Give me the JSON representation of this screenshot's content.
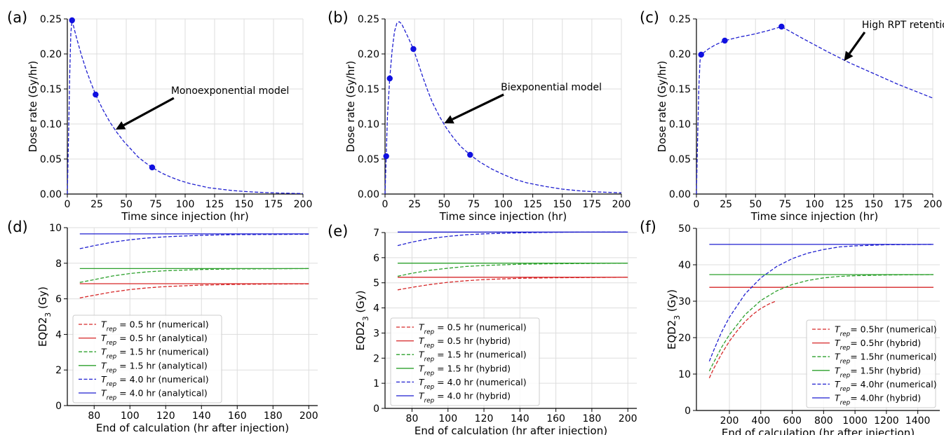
{
  "figure": {
    "panel_labels": [
      "(a)",
      "(b)",
      "(c)",
      "(d)",
      "(e)",
      "(f)"
    ]
  },
  "colors": {
    "red": "#d62728",
    "green": "#2ca02c",
    "blue": "#1f1fd0",
    "marker": "#1010e0",
    "grid": "#dddddd"
  },
  "chart_data": [
    {
      "panel": "(a)",
      "type": "line",
      "xlabel": "Time since injection (hr)",
      "ylabel": "Dose rate (Gy/hr)",
      "xlim": [
        0,
        200
      ],
      "ylim": [
        0,
        0.25
      ],
      "xticks": [
        0,
        25,
        50,
        75,
        100,
        125,
        150,
        175,
        200
      ],
      "yticks": [
        0.0,
        0.05,
        0.1,
        0.15,
        0.2,
        0.25
      ],
      "xtick_labels": [
        "0",
        "25",
        "50",
        "75",
        "100",
        "125",
        "150",
        "175",
        "200"
      ],
      "ytick_labels": [
        "0.00",
        "0.05",
        "0.10",
        "0.15",
        "0.20",
        "0.25"
      ],
      "grid": true,
      "series": [
        {
          "style": "dashed",
          "color": "blue",
          "x": [
            0,
            1,
            2,
            3,
            4,
            8,
            12,
            16,
            20,
            24,
            30,
            36,
            42,
            48,
            54,
            60,
            66,
            72,
            80,
            88,
            96,
            104,
            112,
            120,
            130,
            140,
            150,
            160,
            170,
            180,
            190,
            200
          ],
          "y": [
            0.0,
            0.08,
            0.17,
            0.23,
            0.248,
            0.222,
            0.198,
            0.177,
            0.159,
            0.142,
            0.121,
            0.103,
            0.088,
            0.075,
            0.064,
            0.053,
            0.045,
            0.038,
            0.03,
            0.024,
            0.019,
            0.015,
            0.012,
            0.009,
            0.007,
            0.005,
            0.0037,
            0.0027,
            0.002,
            0.0014,
            0.001,
            0.0007
          ]
        }
      ],
      "markers": {
        "x": [
          4,
          24,
          72
        ],
        "y": [
          0.248,
          0.142,
          0.038
        ]
      },
      "annotation": {
        "text": "Monoexponential model",
        "xy": [
          41,
          0.092
        ],
        "xytext": [
          88,
          0.143
        ]
      }
    },
    {
      "panel": "(b)",
      "type": "line",
      "xlabel": "Time since injection (hr)",
      "ylabel": "Dose rate (Gy/hr)",
      "xlim": [
        0,
        200
      ],
      "ylim": [
        0,
        0.25
      ],
      "xticks": [
        0,
        25,
        50,
        75,
        100,
        125,
        150,
        175,
        200
      ],
      "yticks": [
        0.0,
        0.05,
        0.1,
        0.15,
        0.2,
        0.25
      ],
      "xtick_labels": [
        "0",
        "25",
        "50",
        "75",
        "100",
        "125",
        "150",
        "175",
        "200"
      ],
      "ytick_labels": [
        "0.00",
        "0.05",
        "0.10",
        "0.15",
        "0.20",
        "0.25"
      ],
      "grid": true,
      "series": [
        {
          "style": "dashed",
          "color": "blue",
          "x": [
            0,
            1,
            2,
            4,
            6,
            8,
            10,
            12,
            14,
            16,
            20,
            24,
            28,
            32,
            36,
            40,
            46,
            52,
            58,
            64,
            72,
            80,
            90,
            100,
            110,
            120,
            135,
            150,
            165,
            180,
            200
          ],
          "y": [
            0.0,
            0.054,
            0.11,
            0.165,
            0.205,
            0.232,
            0.244,
            0.246,
            0.243,
            0.236,
            0.222,
            0.207,
            0.187,
            0.167,
            0.148,
            0.131,
            0.111,
            0.094,
            0.08,
            0.068,
            0.056,
            0.046,
            0.036,
            0.028,
            0.021,
            0.016,
            0.011,
            0.007,
            0.0045,
            0.003,
            0.0017
          ]
        }
      ],
      "markers": {
        "x": [
          1,
          4,
          24,
          72
        ],
        "y": [
          0.054,
          0.165,
          0.207,
          0.056
        ]
      },
      "annotation": {
        "text": "Biexponential model",
        "xy": [
          50,
          0.101
        ],
        "xytext": [
          98,
          0.148
        ]
      }
    },
    {
      "panel": "(c)",
      "type": "line",
      "xlabel": "Time since injection (hr)",
      "ylabel": "Dose rate (Gy/hr)",
      "xlim": [
        0,
        200
      ],
      "ylim": [
        0,
        0.25
      ],
      "xticks": [
        0,
        25,
        50,
        75,
        100,
        125,
        150,
        175,
        200
      ],
      "yticks": [
        0.0,
        0.05,
        0.1,
        0.15,
        0.2,
        0.25
      ],
      "xtick_labels": [
        "0",
        "25",
        "50",
        "75",
        "100",
        "125",
        "150",
        "175",
        "200"
      ],
      "ytick_labels": [
        "0.00",
        "0.05",
        "0.10",
        "0.15",
        "0.20",
        "0.25"
      ],
      "grid": true,
      "series": [
        {
          "style": "dashed",
          "color": "blue",
          "x": [
            0,
            1,
            2,
            3,
            4,
            10,
            16,
            24,
            36,
            48,
            60,
            72,
            90,
            110,
            130,
            150,
            170,
            185,
            200
          ],
          "y": [
            0.0,
            0.08,
            0.15,
            0.19,
            0.199,
            0.207,
            0.213,
            0.219,
            0.224,
            0.228,
            0.233,
            0.239,
            0.222,
            0.204,
            0.187,
            0.172,
            0.157,
            0.147,
            0.137
          ]
        }
      ],
      "markers": {
        "x": [
          4,
          24,
          72
        ],
        "y": [
          0.199,
          0.219,
          0.239
        ]
      },
      "annotation": {
        "text": "High RPT retention model",
        "xy": [
          125,
          0.19
        ],
        "xytext": [
          140,
          0.237
        ]
      }
    },
    {
      "panel": "(d)",
      "type": "line",
      "xlabel": "End of calculation (hr after injection)",
      "ylabel": "EQD2",
      "ylabel_sub": "3",
      "ylabel_unit": " (Gy)",
      "xlim": [
        65,
        205
      ],
      "ylim": [
        0,
        10
      ],
      "xticks": [
        80,
        100,
        120,
        140,
        160,
        180,
        200
      ],
      "yticks": [
        0,
        2,
        4,
        6,
        8,
        10
      ],
      "xtick_labels": [
        "80",
        "100",
        "120",
        "140",
        "160",
        "180",
        "200"
      ],
      "ytick_labels": [
        "0",
        "2",
        "4",
        "6",
        "8",
        "10"
      ],
      "grid": true,
      "series": [
        {
          "style": "dashed",
          "color": "red",
          "x": [
            72,
            80,
            90,
            100,
            110,
            120,
            140,
            160,
            180,
            200
          ],
          "y": [
            6.05,
            6.2,
            6.38,
            6.52,
            6.62,
            6.69,
            6.77,
            6.81,
            6.83,
            6.84
          ]
        },
        {
          "style": "solid",
          "color": "red",
          "x": [
            72,
            200
          ],
          "y": [
            6.85,
            6.85
          ]
        },
        {
          "style": "dashed",
          "color": "green",
          "x": [
            72,
            80,
            90,
            100,
            110,
            120,
            140,
            160,
            180,
            200
          ],
          "y": [
            6.92,
            7.08,
            7.28,
            7.42,
            7.52,
            7.58,
            7.65,
            7.68,
            7.69,
            7.7
          ]
        },
        {
          "style": "solid",
          "color": "green",
          "x": [
            72,
            200
          ],
          "y": [
            7.7,
            7.7
          ]
        },
        {
          "style": "dashed",
          "color": "blue",
          "x": [
            72,
            80,
            90,
            100,
            110,
            120,
            140,
            160,
            180,
            200
          ],
          "y": [
            8.82,
            8.99,
            9.18,
            9.32,
            9.42,
            9.49,
            9.57,
            9.61,
            9.62,
            9.63
          ]
        },
        {
          "style": "solid",
          "color": "blue",
          "x": [
            72,
            200
          ],
          "y": [
            9.65,
            9.65
          ]
        }
      ],
      "legend": {
        "position": "center-left",
        "entries": [
          {
            "style": "dashed",
            "color": "red",
            "text": " = 0.5 hr (numerical)"
          },
          {
            "style": "solid",
            "color": "red",
            "text": " = 0.5 hr (analytical)"
          },
          {
            "style": "dashed",
            "color": "green",
            "text": " = 1.5 hr (numerical)"
          },
          {
            "style": "solid",
            "color": "green",
            "text": " = 1.5 hr (analytical)"
          },
          {
            "style": "dashed",
            "color": "blue",
            "text": " = 4.0 hr (numerical)"
          },
          {
            "style": "solid",
            "color": "blue",
            "text": " = 4.0 hr (analytical)"
          }
        ]
      }
    },
    {
      "panel": "(e)",
      "type": "line",
      "xlabel": "End of calculation (hr after injection)",
      "ylabel": "EQD2",
      "ylabel_sub": "3",
      "ylabel_unit": " (Gy)",
      "xlim": [
        65,
        205
      ],
      "ylim": [
        0,
        7
      ],
      "xticks": [
        80,
        100,
        120,
        140,
        160,
        180,
        200
      ],
      "yticks": [
        0,
        1,
        2,
        3,
        4,
        5,
        6,
        7
      ],
      "xtick_labels": [
        "80",
        "100",
        "120",
        "140",
        "160",
        "180",
        "200"
      ],
      "ytick_labels": [
        "0",
        "1",
        "2",
        "3",
        "4",
        "5",
        "6",
        "7"
      ],
      "grid": true,
      "series": [
        {
          "style": "dashed",
          "color": "red",
          "x": [
            72,
            80,
            90,
            100,
            110,
            120,
            140,
            160,
            180,
            200
          ],
          "y": [
            4.72,
            4.82,
            4.93,
            5.02,
            5.08,
            5.13,
            5.18,
            5.2,
            5.21,
            5.22
          ]
        },
        {
          "style": "solid",
          "color": "red",
          "x": [
            72,
            200
          ],
          "y": [
            5.22,
            5.22
          ]
        },
        {
          "style": "dashed",
          "color": "green",
          "x": [
            72,
            80,
            90,
            100,
            110,
            120,
            140,
            160,
            180,
            200
          ],
          "y": [
            5.26,
            5.38,
            5.5,
            5.58,
            5.65,
            5.69,
            5.74,
            5.76,
            5.77,
            5.78
          ]
        },
        {
          "style": "solid",
          "color": "green",
          "x": [
            72,
            200
          ],
          "y": [
            5.78,
            5.78
          ]
        },
        {
          "style": "dashed",
          "color": "blue",
          "x": [
            72,
            80,
            90,
            100,
            110,
            120,
            140,
            160,
            180,
            200
          ],
          "y": [
            6.48,
            6.62,
            6.76,
            6.85,
            6.91,
            6.95,
            6.99,
            7.01,
            7.02,
            7.02
          ]
        },
        {
          "style": "solid",
          "color": "blue",
          "x": [
            72,
            200
          ],
          "y": [
            7.02,
            7.02
          ]
        }
      ],
      "legend": {
        "position": "lower-left",
        "entries": [
          {
            "style": "dashed",
            "color": "red",
            "text": " = 0.5 hr (numerical)"
          },
          {
            "style": "solid",
            "color": "red",
            "text": " = 0.5 hr (hybrid)"
          },
          {
            "style": "dashed",
            "color": "green",
            "text": " = 1.5 hr (numerical)"
          },
          {
            "style": "solid",
            "color": "green",
            "text": " = 1.5 hr (hybrid)"
          },
          {
            "style": "dashed",
            "color": "blue",
            "text": " = 4.0 hr (numerical)"
          },
          {
            "style": "solid",
            "color": "blue",
            "text": " = 4.0 hr (hybrid)"
          }
        ]
      }
    },
    {
      "panel": "(f)",
      "type": "line",
      "xlabel": "End of calculation (hr after injection)",
      "ylabel": "EQD2",
      "ylabel_sub": "3",
      "ylabel_unit": " (Gy)",
      "xlim": [
        -10,
        1540
      ],
      "ylim": [
        0,
        50
      ],
      "xticks": [
        200,
        400,
        600,
        800,
        1000,
        1200,
        1400
      ],
      "yticks": [
        0,
        10,
        20,
        30,
        40,
        50
      ],
      "xtick_labels": [
        "200",
        "400",
        "600",
        "800",
        "1000",
        "1200",
        "1400"
      ],
      "ytick_labels": [
        "0",
        "10",
        "20",
        "30",
        "40",
        "50"
      ],
      "grid": true,
      "series": [
        {
          "style": "dashed",
          "color": "red",
          "x": [
            72,
            100,
            150,
            200,
            250,
            300,
            350,
            400,
            450,
            500
          ],
          "y": [
            8.9,
            11.5,
            15.5,
            19.0,
            21.9,
            24.4,
            26.4,
            28.0,
            29.2,
            30.1
          ]
        },
        {
          "style": "solid",
          "color": "red",
          "x": [
            72,
            1500
          ],
          "y": [
            33.8,
            33.8
          ]
        },
        {
          "style": "dashed",
          "color": "green",
          "x": [
            72,
            100,
            150,
            200,
            300,
            400,
            500,
            600,
            700,
            800,
            900,
            1000,
            1200,
            1500
          ],
          "y": [
            10.8,
            13.2,
            17.3,
            20.8,
            26.3,
            30.2,
            32.8,
            34.6,
            35.7,
            36.4,
            36.8,
            37.0,
            37.2,
            37.3
          ]
        },
        {
          "style": "solid",
          "color": "green",
          "x": [
            72,
            1500
          ],
          "y": [
            37.3,
            37.3
          ]
        },
        {
          "style": "dashed",
          "color": "blue",
          "x": [
            72,
            100,
            150,
            200,
            300,
            400,
            500,
            600,
            700,
            800,
            900,
            1000,
            1200,
            1500
          ],
          "y": [
            13.5,
            16.5,
            21.5,
            25.6,
            32.0,
            36.4,
            39.5,
            41.7,
            43.2,
            44.2,
            44.9,
            45.2,
            45.5,
            45.6
          ]
        },
        {
          "style": "solid",
          "color": "blue",
          "x": [
            72,
            1500
          ],
          "y": [
            45.6,
            45.6
          ]
        }
      ],
      "legend": {
        "position": "lower-right",
        "entries": [
          {
            "style": "dashed",
            "color": "red",
            "text": "= 0.5hr (numerical)"
          },
          {
            "style": "solid",
            "color": "red",
            "text": "= 0.5hr (hybrid)"
          },
          {
            "style": "dashed",
            "color": "green",
            "text": "= 1.5hr (numerical)"
          },
          {
            "style": "solid",
            "color": "green",
            "text": "= 1.5hr (hybrid)"
          },
          {
            "style": "dashed",
            "color": "blue",
            "text": "= 4.0hr (numerical)"
          },
          {
            "style": "solid",
            "color": "blue",
            "text": "= 4.0hr (hybrid)"
          }
        ],
        "symbol": "T",
        "symbol_sub": "rep"
      }
    }
  ]
}
